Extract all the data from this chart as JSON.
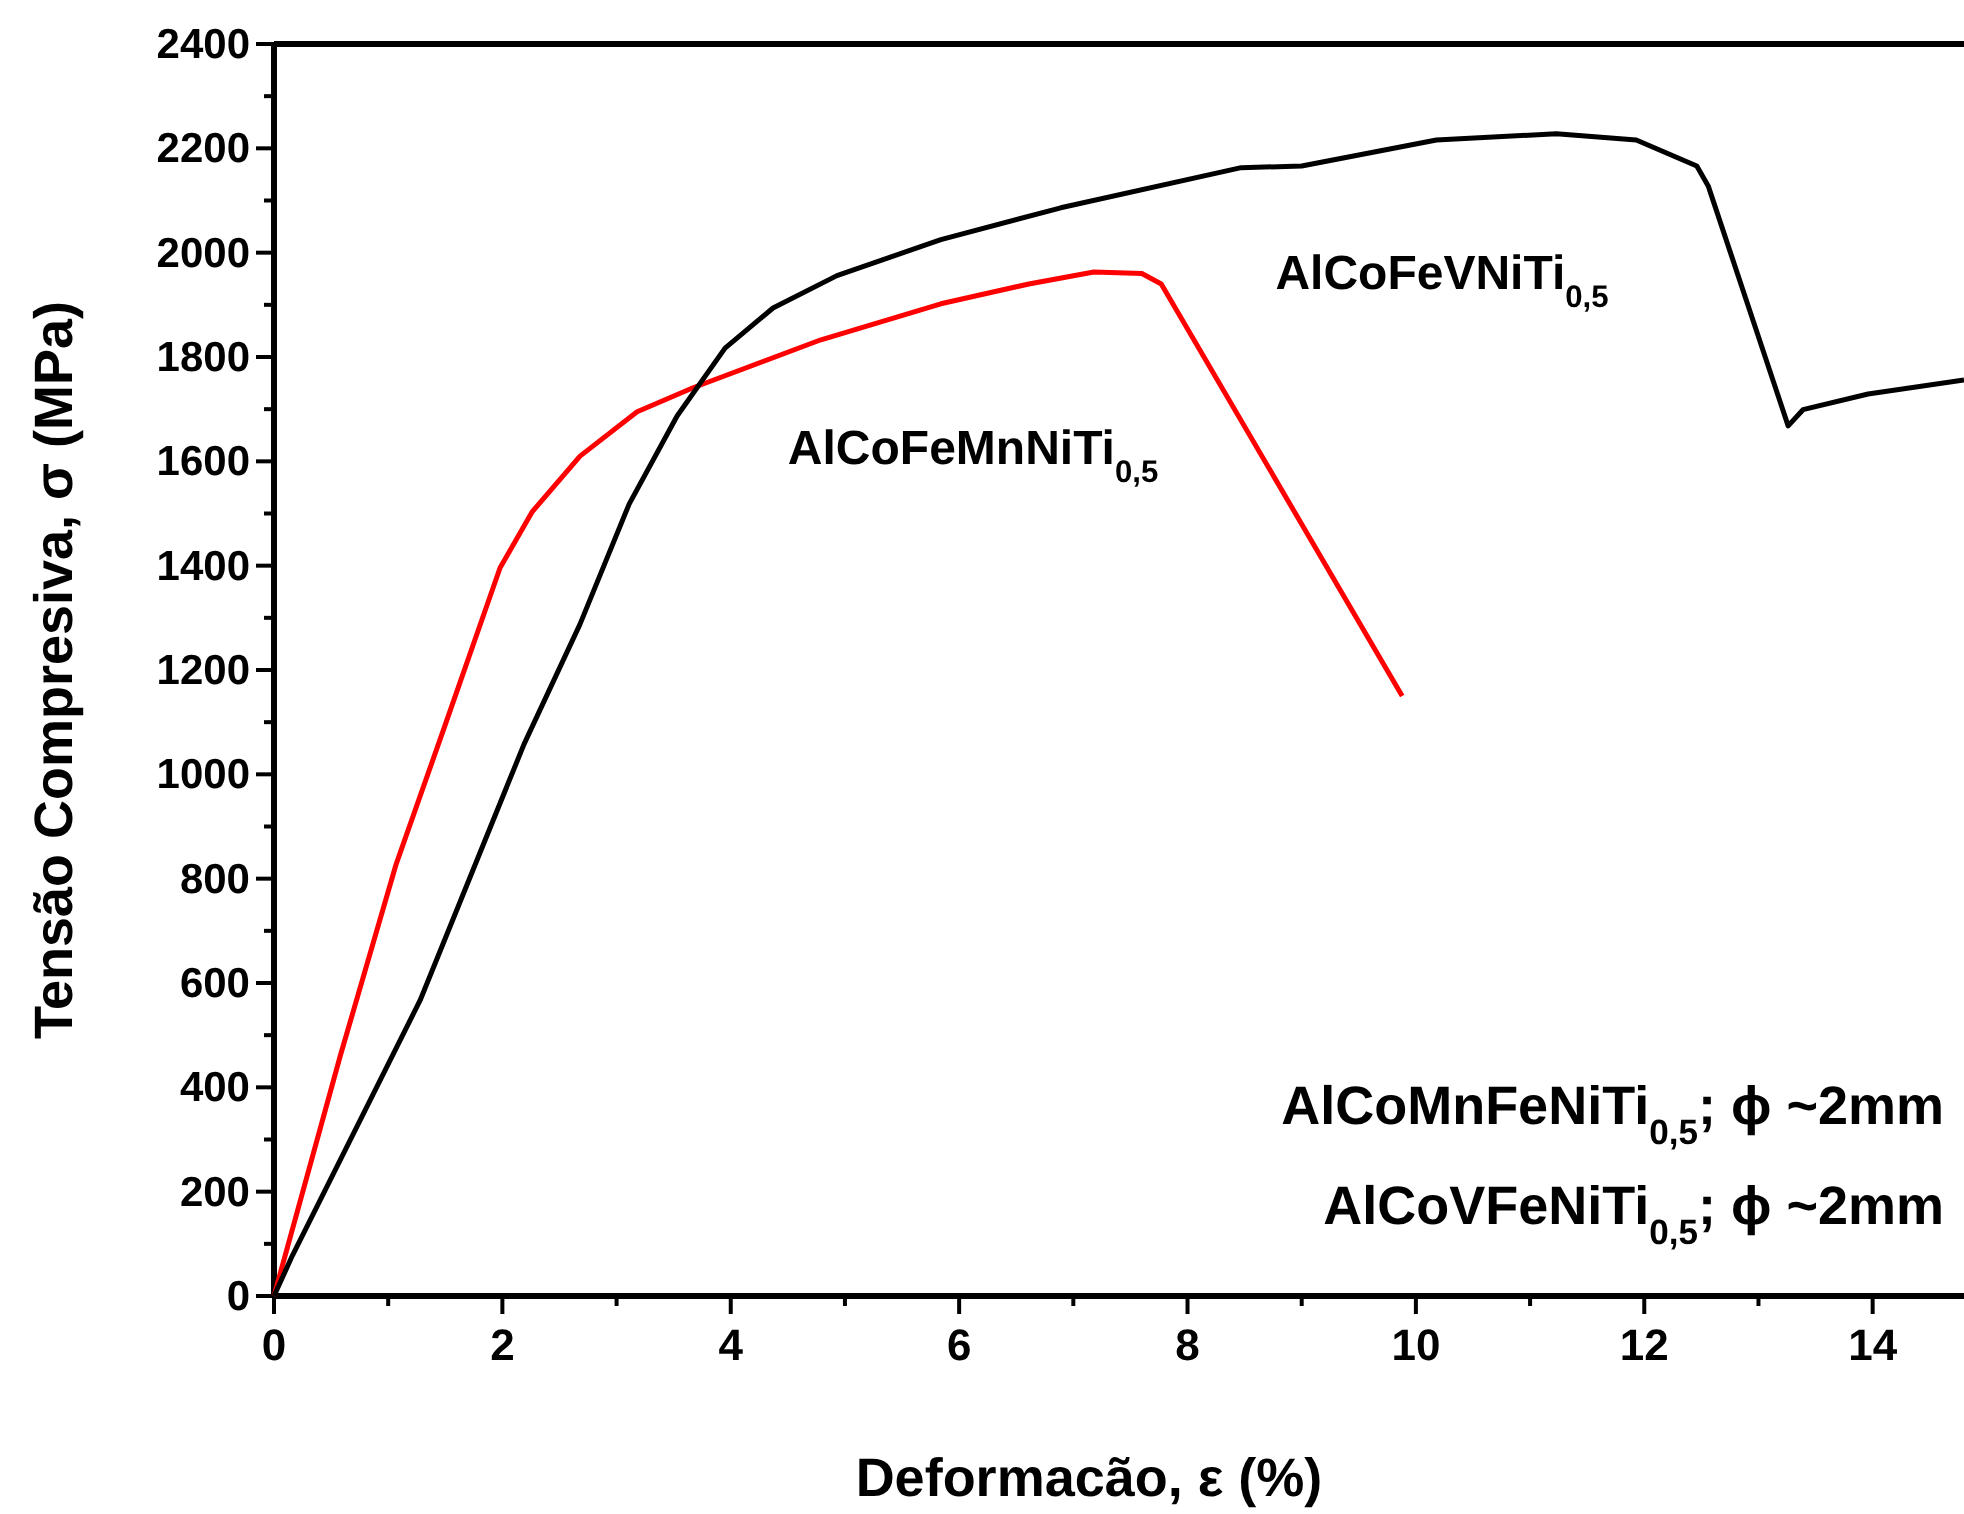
{
  "chart_data": {
    "type": "line",
    "xlabel": "Deformacão, ε (%)",
    "ylabel": "Tensão Compresiva, σ (MPa)",
    "xlim": [
      0,
      14.8
    ],
    "ylim": [
      0,
      2400
    ],
    "xticks": [
      0,
      {
        "value": 1,
        "label": null
      },
      2,
      {
        "value": 3,
        "label": null
      },
      4,
      {
        "value": 5,
        "label": null
      },
      6,
      {
        "value": 7,
        "label": null
      },
      8,
      {
        "value": 9,
        "label": null
      },
      10,
      {
        "value": 11,
        "label": null
      },
      12,
      {
        "value": 13,
        "label": null
      },
      14
    ],
    "yticks": [
      0,
      {
        "value": 100,
        "label": null
      },
      200,
      {
        "value": 300,
        "label": null
      },
      400,
      {
        "value": 500,
        "label": null
      },
      600,
      {
        "value": 700,
        "label": null
      },
      800,
      {
        "value": 900,
        "label": null
      },
      1000,
      {
        "value": 1100,
        "label": null
      },
      1200,
      {
        "value": 1300,
        "label": null
      },
      1400,
      {
        "value": 1500,
        "label": null
      },
      1600,
      {
        "value": 1700,
        "label": null
      },
      1800,
      {
        "value": 1900,
        "label": null
      },
      2000,
      {
        "value": 2100,
        "label": null
      },
      2200,
      {
        "value": 2300,
        "label": null
      },
      2400
    ],
    "grid": false,
    "legend": false,
    "line_style": "solid",
    "series": [
      {
        "name": "AlCoFeMnNiTi$_{0,5}$",
        "color": "#ff0000",
        "x": [
          0,
          0.58,
          1.07,
          1.49,
          1.98,
          2.26,
          2.68,
          3.18,
          3.67,
          4.79,
          5.84,
          6.61,
          7.18,
          7.6,
          7.77,
          9.88
        ],
        "values": [
          0,
          460,
          828,
          1089,
          1396,
          1503,
          1610,
          1695,
          1741,
          1833,
          1902,
          1940,
          1963,
          1960,
          1940,
          1150
        ]
      },
      {
        "name": "AlCoFeVNiTi$_{0,5}$",
        "color": "#000000",
        "x": [
          0,
          0.16,
          1.28,
          2.19,
          2.68,
          3.11,
          3.53,
          3.95,
          4.37,
          4.93,
          5.84,
          6.89,
          8.47,
          9.0,
          10.18,
          11.23,
          11.93,
          12.46,
          12.56,
          13.26,
          13.39,
          13.96,
          14.8
        ],
        "values": [
          0,
          77,
          567,
          1058,
          1288,
          1518,
          1687,
          1817,
          1894,
          1956,
          2025,
          2086,
          2163,
          2166,
          2216,
          2228,
          2216,
          2166,
          2128,
          1668,
          1699,
          1729,
          1756
        ]
      }
    ],
    "annotations": [
      "AlCoMnFeNiTi$_{0,5}$; ϕ ~2mm",
      "AlCoVFeNiTi$_{0,5}$; ϕ ~2mm"
    ]
  }
}
